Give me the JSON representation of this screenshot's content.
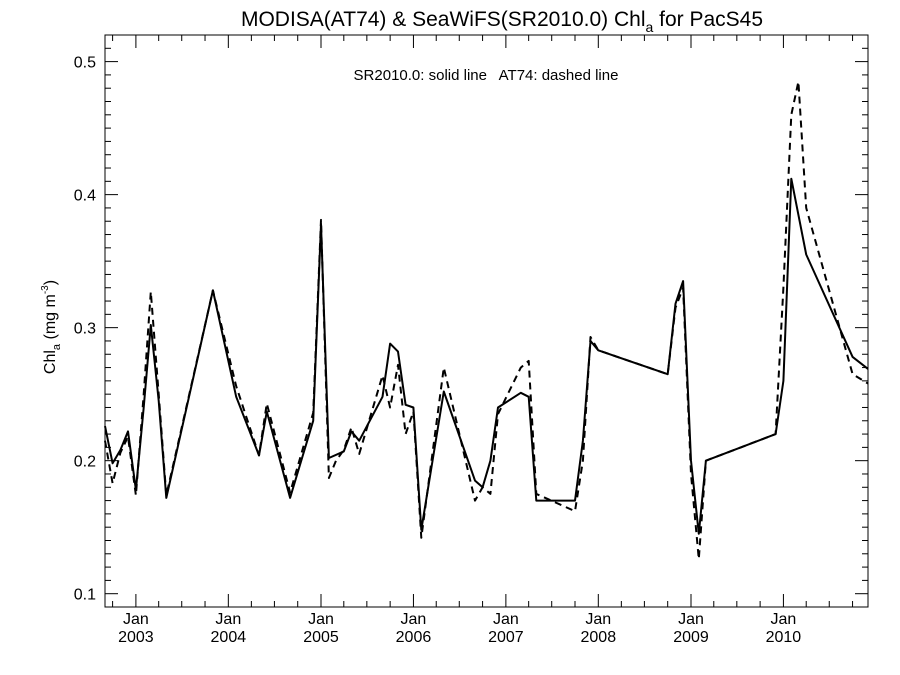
{
  "chart_data": {
    "type": "line",
    "title": {
      "prefix": "MODISA(AT74) & SeaWiFS(SR2010.0)  Chl",
      "subscript": "a",
      "suffix": " for PacS45"
    },
    "annotation": "SR2010.0: solid line   AT74: dashed line",
    "ylabel": {
      "main": "Chl",
      "subscript": "a",
      "units_prefix": " (mg m",
      "superscript": "-3",
      "units_suffix": ")"
    },
    "ylim": [
      0.09,
      0.52
    ],
    "yticks": [
      0.1,
      0.2,
      0.3,
      0.4,
      0.5
    ],
    "ytick_labels": [
      "0.1",
      "0.2",
      "0.3",
      "0.4",
      "0.5"
    ],
    "xlim": [
      "2002-09-01",
      "2010-12-01"
    ],
    "xticks": [
      {
        "date": "2003-01-01",
        "month": "Jan",
        "year": "2003"
      },
      {
        "date": "2004-01-01",
        "month": "Jan",
        "year": "2004"
      },
      {
        "date": "2005-01-01",
        "month": "Jan",
        "year": "2005"
      },
      {
        "date": "2006-01-01",
        "month": "Jan",
        "year": "2006"
      },
      {
        "date": "2007-01-01",
        "month": "Jan",
        "year": "2007"
      },
      {
        "date": "2008-01-01",
        "month": "Jan",
        "year": "2008"
      },
      {
        "date": "2009-01-01",
        "month": "Jan",
        "year": "2009"
      },
      {
        "date": "2010-01-01",
        "month": "Jan",
        "year": "2010"
      }
    ],
    "grid": false,
    "series": [
      {
        "name": "SR2010.0",
        "style": "solid",
        "color": "#000000",
        "points": [
          [
            "2002-09-01",
            0.226
          ],
          [
            "2002-10-01",
            0.198
          ],
          [
            "2002-11-01",
            0.208
          ],
          [
            "2002-12-01",
            0.222
          ],
          [
            "2003-01-01",
            0.178
          ],
          [
            "2003-02-01",
            0.24
          ],
          [
            "2003-03-01",
            0.302
          ],
          [
            "2003-04-01",
            0.245
          ],
          [
            "2003-05-01",
            0.172
          ],
          [
            "2003-11-01",
            0.328
          ],
          [
            "2004-02-01",
            0.248
          ],
          [
            "2004-05-01",
            0.204
          ],
          [
            "2004-06-01",
            0.237
          ],
          [
            "2004-09-01",
            0.172
          ],
          [
            "2004-12-01",
            0.23
          ],
          [
            "2005-01-01",
            0.378
          ],
          [
            "2005-02-01",
            0.202
          ],
          [
            "2005-04-01",
            0.207
          ],
          [
            "2005-05-01",
            0.222
          ],
          [
            "2005-06-01",
            0.215
          ],
          [
            "2005-09-01",
            0.248
          ],
          [
            "2005-10-01",
            0.288
          ],
          [
            "2005-11-01",
            0.282
          ],
          [
            "2005-12-01",
            0.242
          ],
          [
            "2006-01-01",
            0.24
          ],
          [
            "2006-02-01",
            0.148
          ],
          [
            "2006-05-01",
            0.252
          ],
          [
            "2006-09-01",
            0.185
          ],
          [
            "2006-10-01",
            0.18
          ],
          [
            "2006-11-01",
            0.2
          ],
          [
            "2006-12-01",
            0.24
          ],
          [
            "2007-03-01",
            0.251
          ],
          [
            "2007-04-01",
            0.248
          ],
          [
            "2007-05-01",
            0.17
          ],
          [
            "2007-10-01",
            0.17
          ],
          [
            "2007-11-01",
            0.215
          ],
          [
            "2007-12-01",
            0.29
          ],
          [
            "2008-01-01",
            0.283
          ],
          [
            "2008-10-01",
            0.265
          ],
          [
            "2008-11-01",
            0.318
          ],
          [
            "2008-12-01",
            0.335
          ],
          [
            "2009-01-01",
            0.2
          ],
          [
            "2009-02-01",
            0.145
          ],
          [
            "2009-03-01",
            0.2
          ],
          [
            "2009-12-01",
            0.22
          ],
          [
            "2010-01-01",
            0.26
          ],
          [
            "2010-02-01",
            0.412
          ],
          [
            "2010-04-01",
            0.355
          ],
          [
            "2010-10-01",
            0.278
          ],
          [
            "2010-12-01",
            0.269
          ]
        ]
      },
      {
        "name": "AT74",
        "style": "dashed",
        "color": "#000000",
        "points": [
          [
            "2002-09-01",
            0.215
          ],
          [
            "2002-10-01",
            0.183
          ],
          [
            "2002-11-01",
            0.206
          ],
          [
            "2002-12-01",
            0.218
          ],
          [
            "2003-01-01",
            0.174
          ],
          [
            "2003-02-01",
            0.25
          ],
          [
            "2003-03-01",
            0.327
          ],
          [
            "2003-04-01",
            0.25
          ],
          [
            "2003-05-01",
            0.174
          ],
          [
            "2003-11-01",
            0.328
          ],
          [
            "2004-02-01",
            0.256
          ],
          [
            "2004-05-01",
            0.204
          ],
          [
            "2004-06-01",
            0.243
          ],
          [
            "2004-09-01",
            0.176
          ],
          [
            "2004-12-01",
            0.236
          ],
          [
            "2005-01-01",
            0.381
          ],
          [
            "2005-02-01",
            0.187
          ],
          [
            "2005-03-01",
            0.2
          ],
          [
            "2005-04-01",
            0.208
          ],
          [
            "2005-05-01",
            0.225
          ],
          [
            "2005-06-01",
            0.205
          ],
          [
            "2005-09-01",
            0.264
          ],
          [
            "2005-10-01",
            0.24
          ],
          [
            "2005-11-01",
            0.272
          ],
          [
            "2005-12-01",
            0.22
          ],
          [
            "2006-01-01",
            0.237
          ],
          [
            "2006-02-01",
            0.142
          ],
          [
            "2006-05-01",
            0.27
          ],
          [
            "2006-09-01",
            0.17
          ],
          [
            "2006-10-01",
            0.18
          ],
          [
            "2006-11-01",
            0.175
          ],
          [
            "2006-12-01",
            0.235
          ],
          [
            "2007-03-01",
            0.27
          ],
          [
            "2007-04-01",
            0.275
          ],
          [
            "2007-05-01",
            0.175
          ],
          [
            "2007-10-01",
            0.162
          ],
          [
            "2007-11-01",
            0.2
          ],
          [
            "2007-12-01",
            0.293
          ],
          [
            "2008-01-01",
            0.283
          ],
          [
            "2008-10-01",
            0.265
          ],
          [
            "2008-11-01",
            0.315
          ],
          [
            "2008-12-01",
            0.33
          ],
          [
            "2009-01-01",
            0.19
          ],
          [
            "2009-02-01",
            0.126
          ],
          [
            "2009-03-01",
            0.2
          ],
          [
            "2009-12-01",
            0.22
          ],
          [
            "2010-01-01",
            0.33
          ],
          [
            "2010-02-01",
            0.46
          ],
          [
            "2010-03-01",
            0.485
          ],
          [
            "2010-04-01",
            0.39
          ],
          [
            "2010-10-01",
            0.265
          ],
          [
            "2010-12-01",
            0.258
          ]
        ]
      }
    ]
  }
}
